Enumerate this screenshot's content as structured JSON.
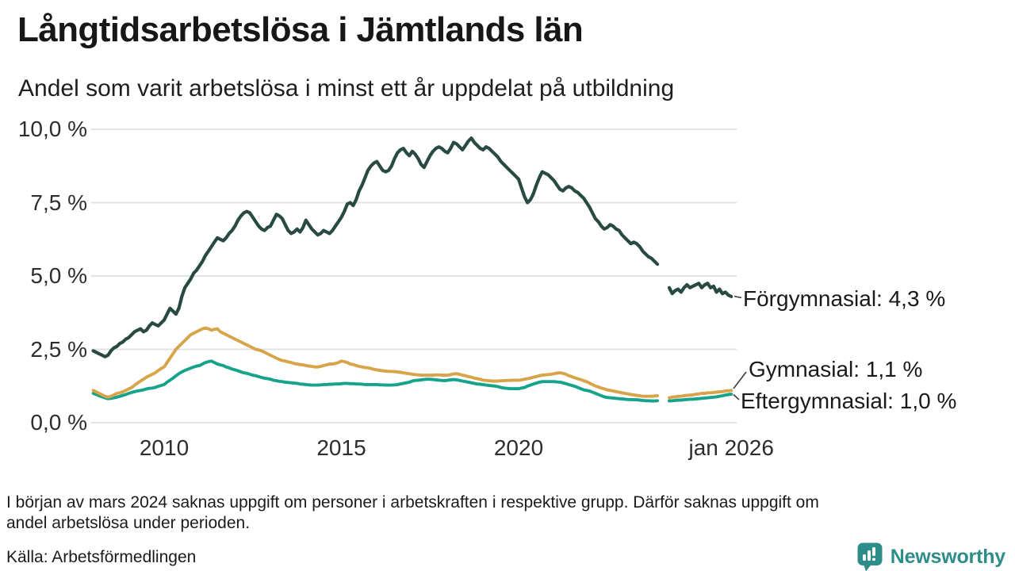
{
  "header": {
    "title": "Långtidsarbetslösa i Jämtlands län",
    "subtitle": "Andel som varit arbetslösa i minst ett år uppdelat på utbildning"
  },
  "chart_data": {
    "type": "line",
    "title": "Långtidsarbetslösa i Jämtlands län",
    "subtitle": "Andel som varit arbetslösa i minst ett år uppdelat på utbildning",
    "unit": "percent",
    "x_start": "2008-01",
    "x_end": "2026-01",
    "x_interval": "monthly",
    "missing_months": [
      "2024-01",
      "2024-02",
      "2024-03"
    ],
    "ylim": [
      0,
      10
    ],
    "grid": true,
    "grid_color": "#e3e3e3",
    "y_ticks": [
      {
        "value": 0,
        "label": "0,0 %"
      },
      {
        "value": 2.5,
        "label": "2,5 %"
      },
      {
        "value": 5,
        "label": "5,0 %"
      },
      {
        "value": 7.5,
        "label": "7,5 %"
      },
      {
        "value": 10,
        "label": "10,0 %"
      }
    ],
    "x_ticks": [
      {
        "year": 2010,
        "label": "2010"
      },
      {
        "year": 2015,
        "label": "2015"
      },
      {
        "year": 2020,
        "label": "2020"
      },
      {
        "year": 2026,
        "label": "jan 2026"
      }
    ],
    "legend_position": "end-of-line-labels",
    "series": [
      {
        "name": "Förgymnasial",
        "color": "#294a42",
        "end_value": "4,3 %",
        "end_label": "Förgymnasial: 4,3 %",
        "values": [
          2.45,
          2.4,
          2.35,
          2.3,
          2.25,
          2.3,
          2.45,
          2.55,
          2.6,
          2.7,
          2.75,
          2.85,
          2.9,
          3.0,
          3.1,
          3.15,
          3.2,
          3.1,
          3.15,
          3.3,
          3.4,
          3.35,
          3.3,
          3.4,
          3.5,
          3.7,
          3.9,
          3.8,
          3.7,
          3.9,
          4.3,
          4.6,
          4.75,
          4.9,
          5.1,
          5.2,
          5.35,
          5.5,
          5.7,
          5.85,
          6.0,
          6.15,
          6.3,
          6.25,
          6.2,
          6.3,
          6.45,
          6.55,
          6.7,
          6.9,
          7.05,
          7.15,
          7.2,
          7.15,
          7.0,
          6.85,
          6.7,
          6.6,
          6.55,
          6.65,
          6.7,
          6.9,
          7.1,
          7.05,
          6.95,
          6.75,
          6.55,
          6.45,
          6.5,
          6.6,
          6.5,
          6.65,
          6.9,
          6.75,
          6.6,
          6.5,
          6.4,
          6.45,
          6.55,
          6.5,
          6.45,
          6.55,
          6.7,
          6.85,
          7.0,
          7.2,
          7.45,
          7.5,
          7.4,
          7.6,
          7.9,
          8.1,
          8.35,
          8.6,
          8.75,
          8.85,
          8.9,
          8.75,
          8.6,
          8.55,
          8.6,
          8.75,
          9.0,
          9.2,
          9.3,
          9.35,
          9.2,
          9.1,
          9.25,
          9.15,
          9.0,
          8.8,
          8.7,
          8.9,
          9.1,
          9.25,
          9.35,
          9.4,
          9.35,
          9.25,
          9.2,
          9.35,
          9.55,
          9.5,
          9.4,
          9.3,
          9.45,
          9.6,
          9.7,
          9.55,
          9.45,
          9.35,
          9.3,
          9.4,
          9.35,
          9.25,
          9.15,
          9.05,
          8.9,
          8.8,
          8.7,
          8.6,
          8.5,
          8.4,
          8.3,
          8.0,
          7.7,
          7.5,
          7.6,
          7.8,
          8.1,
          8.35,
          8.55,
          8.5,
          8.45,
          8.35,
          8.25,
          8.1,
          7.95,
          7.9,
          8.0,
          8.05,
          8.0,
          7.9,
          7.85,
          7.75,
          7.65,
          7.5,
          7.35,
          7.15,
          6.95,
          6.85,
          6.7,
          6.6,
          6.65,
          6.75,
          6.7,
          6.6,
          6.55,
          6.4,
          6.3,
          6.2,
          6.1,
          6.15,
          6.1,
          6.0,
          5.85,
          5.75,
          5.65,
          5.6,
          5.5,
          5.4,
          null,
          null,
          null,
          4.6,
          4.4,
          4.5,
          4.55,
          4.45,
          4.6,
          4.7,
          4.6,
          4.65,
          4.7,
          4.75,
          4.6,
          4.7,
          4.75,
          4.6,
          4.65,
          4.45,
          4.55,
          4.4,
          4.45,
          4.35,
          4.3
        ]
      },
      {
        "name": "Gymnasial",
        "color": "#d7a44a",
        "end_value": "1,1 %",
        "end_label": "Gymnasial: 1,1 %",
        "values": [
          1.1,
          1.05,
          1.0,
          0.95,
          0.9,
          0.87,
          0.9,
          0.95,
          1.0,
          1.02,
          1.05,
          1.1,
          1.15,
          1.2,
          1.28,
          1.35,
          1.42,
          1.48,
          1.55,
          1.6,
          1.65,
          1.7,
          1.78,
          1.85,
          1.9,
          2.05,
          2.2,
          2.35,
          2.5,
          2.6,
          2.7,
          2.8,
          2.9,
          3.0,
          3.05,
          3.1,
          3.15,
          3.2,
          3.23,
          3.2,
          3.15,
          3.18,
          3.2,
          3.1,
          3.05,
          3.0,
          2.95,
          2.9,
          2.85,
          2.8,
          2.75,
          2.7,
          2.65,
          2.6,
          2.55,
          2.5,
          2.48,
          2.45,
          2.4,
          2.35,
          2.3,
          2.25,
          2.2,
          2.15,
          2.12,
          2.1,
          2.07,
          2.05,
          2.02,
          2.0,
          1.98,
          1.97,
          1.95,
          1.93,
          1.92,
          1.9,
          1.9,
          1.92,
          1.95,
          1.97,
          2.0,
          2.0,
          2.02,
          2.05,
          2.1,
          2.08,
          2.05,
          2.0,
          1.98,
          1.95,
          1.92,
          1.9,
          1.88,
          1.87,
          1.85,
          1.82,
          1.8,
          1.78,
          1.77,
          1.76,
          1.75,
          1.75,
          1.74,
          1.73,
          1.72,
          1.7,
          1.68,
          1.67,
          1.65,
          1.64,
          1.63,
          1.62,
          1.62,
          1.62,
          1.62,
          1.62,
          1.63,
          1.63,
          1.62,
          1.62,
          1.62,
          1.64,
          1.66,
          1.67,
          1.65,
          1.62,
          1.6,
          1.57,
          1.55,
          1.52,
          1.5,
          1.48,
          1.45,
          1.44,
          1.43,
          1.42,
          1.42,
          1.42,
          1.43,
          1.43,
          1.44,
          1.44,
          1.45,
          1.45,
          1.45,
          1.46,
          1.48,
          1.5,
          1.52,
          1.55,
          1.57,
          1.6,
          1.62,
          1.63,
          1.64,
          1.65,
          1.67,
          1.69,
          1.7,
          1.68,
          1.65,
          1.6,
          1.57,
          1.53,
          1.5,
          1.47,
          1.43,
          1.4,
          1.35,
          1.3,
          1.25,
          1.22,
          1.18,
          1.15,
          1.12,
          1.1,
          1.08,
          1.06,
          1.04,
          1.02,
          1.0,
          0.98,
          0.96,
          0.95,
          0.93,
          0.92,
          0.9,
          0.9,
          0.9,
          0.9,
          0.91,
          0.92,
          null,
          null,
          null,
          0.85,
          0.87,
          0.88,
          0.9,
          0.9,
          0.92,
          0.93,
          0.94,
          0.95,
          0.97,
          0.98,
          1.0,
          1.0,
          1.02,
          1.02,
          1.03,
          1.04,
          1.05,
          1.06,
          1.08,
          1.09,
          1.1
        ]
      },
      {
        "name": "Eftergymnasial",
        "color": "#17a28b",
        "end_value": "1,0 %",
        "end_label": "Eftergymnasial: 1,0 %",
        "values": [
          1.0,
          0.96,
          0.92,
          0.88,
          0.85,
          0.82,
          0.83,
          0.85,
          0.87,
          0.9,
          0.93,
          0.96,
          1.0,
          1.03,
          1.06,
          1.08,
          1.1,
          1.12,
          1.15,
          1.17,
          1.18,
          1.2,
          1.24,
          1.27,
          1.3,
          1.38,
          1.45,
          1.52,
          1.6,
          1.67,
          1.73,
          1.78,
          1.82,
          1.86,
          1.9,
          1.93,
          1.95,
          2.0,
          2.05,
          2.08,
          2.1,
          2.05,
          2.0,
          1.97,
          1.95,
          1.9,
          1.87,
          1.83,
          1.8,
          1.77,
          1.73,
          1.7,
          1.68,
          1.65,
          1.62,
          1.6,
          1.57,
          1.54,
          1.52,
          1.5,
          1.48,
          1.45,
          1.43,
          1.41,
          1.4,
          1.38,
          1.37,
          1.36,
          1.35,
          1.34,
          1.32,
          1.31,
          1.3,
          1.29,
          1.28,
          1.28,
          1.28,
          1.29,
          1.3,
          1.3,
          1.31,
          1.31,
          1.32,
          1.32,
          1.33,
          1.34,
          1.34,
          1.33,
          1.33,
          1.32,
          1.32,
          1.31,
          1.3,
          1.3,
          1.3,
          1.3,
          1.3,
          1.29,
          1.29,
          1.28,
          1.28,
          1.28,
          1.29,
          1.3,
          1.32,
          1.34,
          1.36,
          1.38,
          1.42,
          1.44,
          1.45,
          1.46,
          1.47,
          1.48,
          1.48,
          1.47,
          1.46,
          1.45,
          1.44,
          1.43,
          1.45,
          1.46,
          1.47,
          1.46,
          1.44,
          1.42,
          1.4,
          1.38,
          1.36,
          1.34,
          1.32,
          1.31,
          1.3,
          1.28,
          1.27,
          1.26,
          1.25,
          1.23,
          1.2,
          1.18,
          1.17,
          1.16,
          1.16,
          1.16,
          1.16,
          1.18,
          1.2,
          1.25,
          1.28,
          1.32,
          1.35,
          1.38,
          1.4,
          1.4,
          1.4,
          1.4,
          1.4,
          1.39,
          1.38,
          1.36,
          1.33,
          1.3,
          1.27,
          1.24,
          1.2,
          1.16,
          1.12,
          1.1,
          1.08,
          1.04,
          1.0,
          0.96,
          0.92,
          0.88,
          0.86,
          0.85,
          0.84,
          0.83,
          0.82,
          0.81,
          0.8,
          0.79,
          0.79,
          0.78,
          0.78,
          0.77,
          0.76,
          0.75,
          0.75,
          0.74,
          0.74,
          0.75,
          null,
          null,
          null,
          0.74,
          0.75,
          0.76,
          0.77,
          0.77,
          0.78,
          0.79,
          0.8,
          0.8,
          0.81,
          0.82,
          0.83,
          0.84,
          0.85,
          0.86,
          0.87,
          0.88,
          0.9,
          0.92,
          0.94,
          0.96,
          0.97
        ]
      }
    ]
  },
  "footnote": {
    "line1": "I början av mars 2024 saknas uppgift om personer i arbetskraften i respektive grupp. Därför saknas uppgift om",
    "line2": "andel arbetslösa under perioden."
  },
  "source": "Källa: Arbetsförmedlingen",
  "branding": {
    "name": "Newsworthy",
    "color": "#2f8d89",
    "icon": "newsworthy-pin-bar-chart-icon"
  }
}
